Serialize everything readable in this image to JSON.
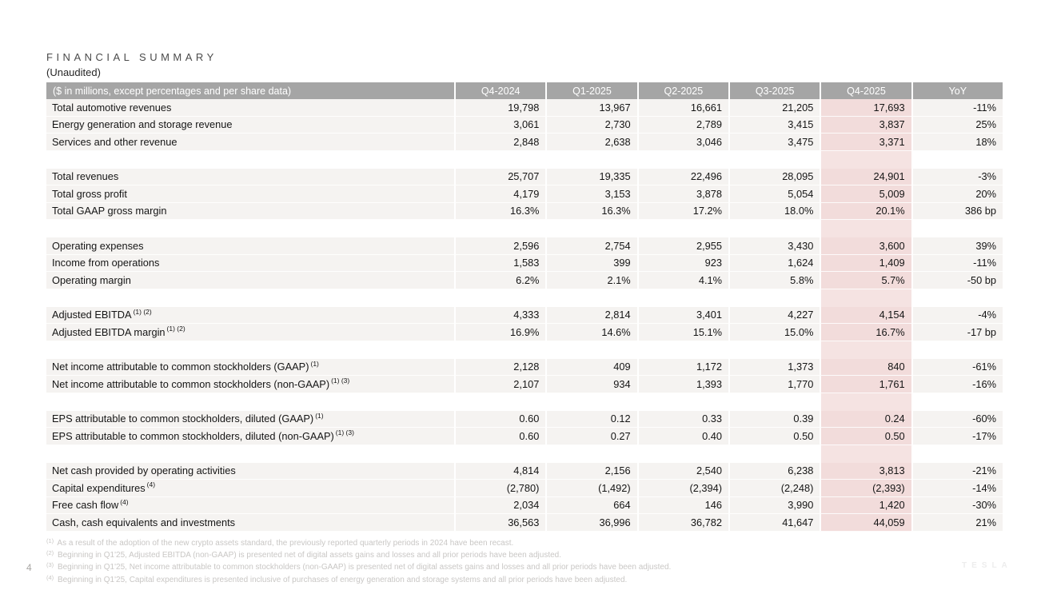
{
  "page": {
    "number": "4",
    "brand": "TESLA"
  },
  "title": "FINANCIAL SUMMARY",
  "subtitle": "(Unaudited)",
  "colors": {
    "header_bg": "#a5a5a5",
    "row_bg": "#f5f3f1",
    "highlight_bg": "#f2dcdb",
    "header_text": "#ffffff"
  },
  "table": {
    "header_label": "($ in millions, except percentages and per share data)",
    "columns": [
      "Q4-2024",
      "Q1-2025",
      "Q2-2025",
      "Q3-2025",
      "Q4-2025",
      "YoY"
    ],
    "highlight_column": "Q4-2025",
    "highlight_column_index": 4,
    "sections": [
      {
        "rows": [
          {
            "label": "Total automotive revenues",
            "sup": "",
            "values": [
              "19,798",
              "13,967",
              "16,661",
              "21,205",
              "17,693",
              "-11%"
            ]
          },
          {
            "label": "Energy generation and storage revenue",
            "sup": "",
            "values": [
              "3,061",
              "2,730",
              "2,789",
              "3,415",
              "3,837",
              "25%"
            ]
          },
          {
            "label": "Services and other revenue",
            "sup": "",
            "values": [
              "2,848",
              "2,638",
              "3,046",
              "3,475",
              "3,371",
              "18%"
            ]
          }
        ]
      },
      {
        "rows": [
          {
            "label": "Total revenues",
            "sup": "",
            "values": [
              "25,707",
              "19,335",
              "22,496",
              "28,095",
              "24,901",
              "-3%"
            ]
          },
          {
            "label": "Total gross profit",
            "sup": "",
            "values": [
              "4,179",
              "3,153",
              "3,878",
              "5,054",
              "5,009",
              "20%"
            ]
          },
          {
            "label": "Total GAAP gross margin",
            "sup": "",
            "values": [
              "16.3%",
              "16.3%",
              "17.2%",
              "18.0%",
              "20.1%",
              "386 bp"
            ]
          }
        ]
      },
      {
        "rows": [
          {
            "label": "Operating expenses",
            "sup": "",
            "values": [
              "2,596",
              "2,754",
              "2,955",
              "3,430",
              "3,600",
              "39%"
            ]
          },
          {
            "label": "Income from operations",
            "sup": "",
            "values": [
              "1,583",
              "399",
              "923",
              "1,624",
              "1,409",
              "-11%"
            ]
          },
          {
            "label": "Operating margin",
            "sup": "",
            "values": [
              "6.2%",
              "2.1%",
              "4.1%",
              "5.8%",
              "5.7%",
              "-50 bp"
            ]
          }
        ]
      },
      {
        "rows": [
          {
            "label": "Adjusted EBITDA",
            "sup": "(1) (2)",
            "values": [
              "4,333",
              "2,814",
              "3,401",
              "4,227",
              "4,154",
              "-4%"
            ]
          },
          {
            "label": "Adjusted EBITDA margin",
            "sup": "(1) (2)",
            "values": [
              "16.9%",
              "14.6%",
              "15.1%",
              "15.0%",
              "16.7%",
              "-17 bp"
            ]
          }
        ]
      },
      {
        "rows": [
          {
            "label": "Net income attributable to common stockholders (GAAP)",
            "sup": "(1)",
            "values": [
              "2,128",
              "409",
              "1,172",
              "1,373",
              "840",
              "-61%"
            ]
          },
          {
            "label": "Net income attributable to common stockholders (non-GAAP)",
            "sup": "(1) (3)",
            "values": [
              "2,107",
              "934",
              "1,393",
              "1,770",
              "1,761",
              "-16%"
            ]
          }
        ]
      },
      {
        "rows": [
          {
            "label": "EPS attributable to common stockholders, diluted (GAAP)",
            "sup": "(1)",
            "values": [
              "0.60",
              "0.12",
              "0.33",
              "0.39",
              "0.24",
              "-60%"
            ]
          },
          {
            "label": "EPS attributable to common stockholders, diluted (non-GAAP)",
            "sup": "(1) (3)",
            "values": [
              "0.60",
              "0.27",
              "0.40",
              "0.50",
              "0.50",
              "-17%"
            ]
          }
        ]
      },
      {
        "rows": [
          {
            "label": "Net cash provided by operating activities",
            "sup": "",
            "values": [
              "4,814",
              "2,156",
              "2,540",
              "6,238",
              "3,813",
              "-21%"
            ]
          },
          {
            "label": "Capital expenditures",
            "sup": "(4)",
            "values": [
              "(2,780)",
              "(1,492)",
              "(2,394)",
              "(2,248)",
              "(2,393)",
              "-14%"
            ]
          },
          {
            "label": "Free cash flow",
            "sup": "(4)",
            "values": [
              "2,034",
              "664",
              "146",
              "3,990",
              "1,420",
              "-30%"
            ]
          },
          {
            "label": "Cash, cash equivalents and investments",
            "sup": "",
            "values": [
              "36,563",
              "36,996",
              "36,782",
              "41,647",
              "44,059",
              "21%"
            ]
          }
        ]
      }
    ]
  },
  "footnotes": [
    {
      "marker": "(1)",
      "text": "As a result of the adoption of the new crypto assets standard, the previously reported quarterly periods in 2024 have been recast."
    },
    {
      "marker": "(2)",
      "text": "Beginning in Q1'25, Adjusted EBITDA (non-GAAP) is presented net of digital assets gains and losses and all prior periods have been adjusted."
    },
    {
      "marker": "(3)",
      "text": "Beginning in Q1'25, Net income attributable to common stockholders (non-GAAP) is presented net of digital assets gains and losses and all prior periods have been adjusted."
    },
    {
      "marker": "(4)",
      "text": "Beginning in Q1'25, Capital expenditures is presented inclusive of purchases of energy generation and storage systems and all prior periods have been adjusted."
    }
  ]
}
